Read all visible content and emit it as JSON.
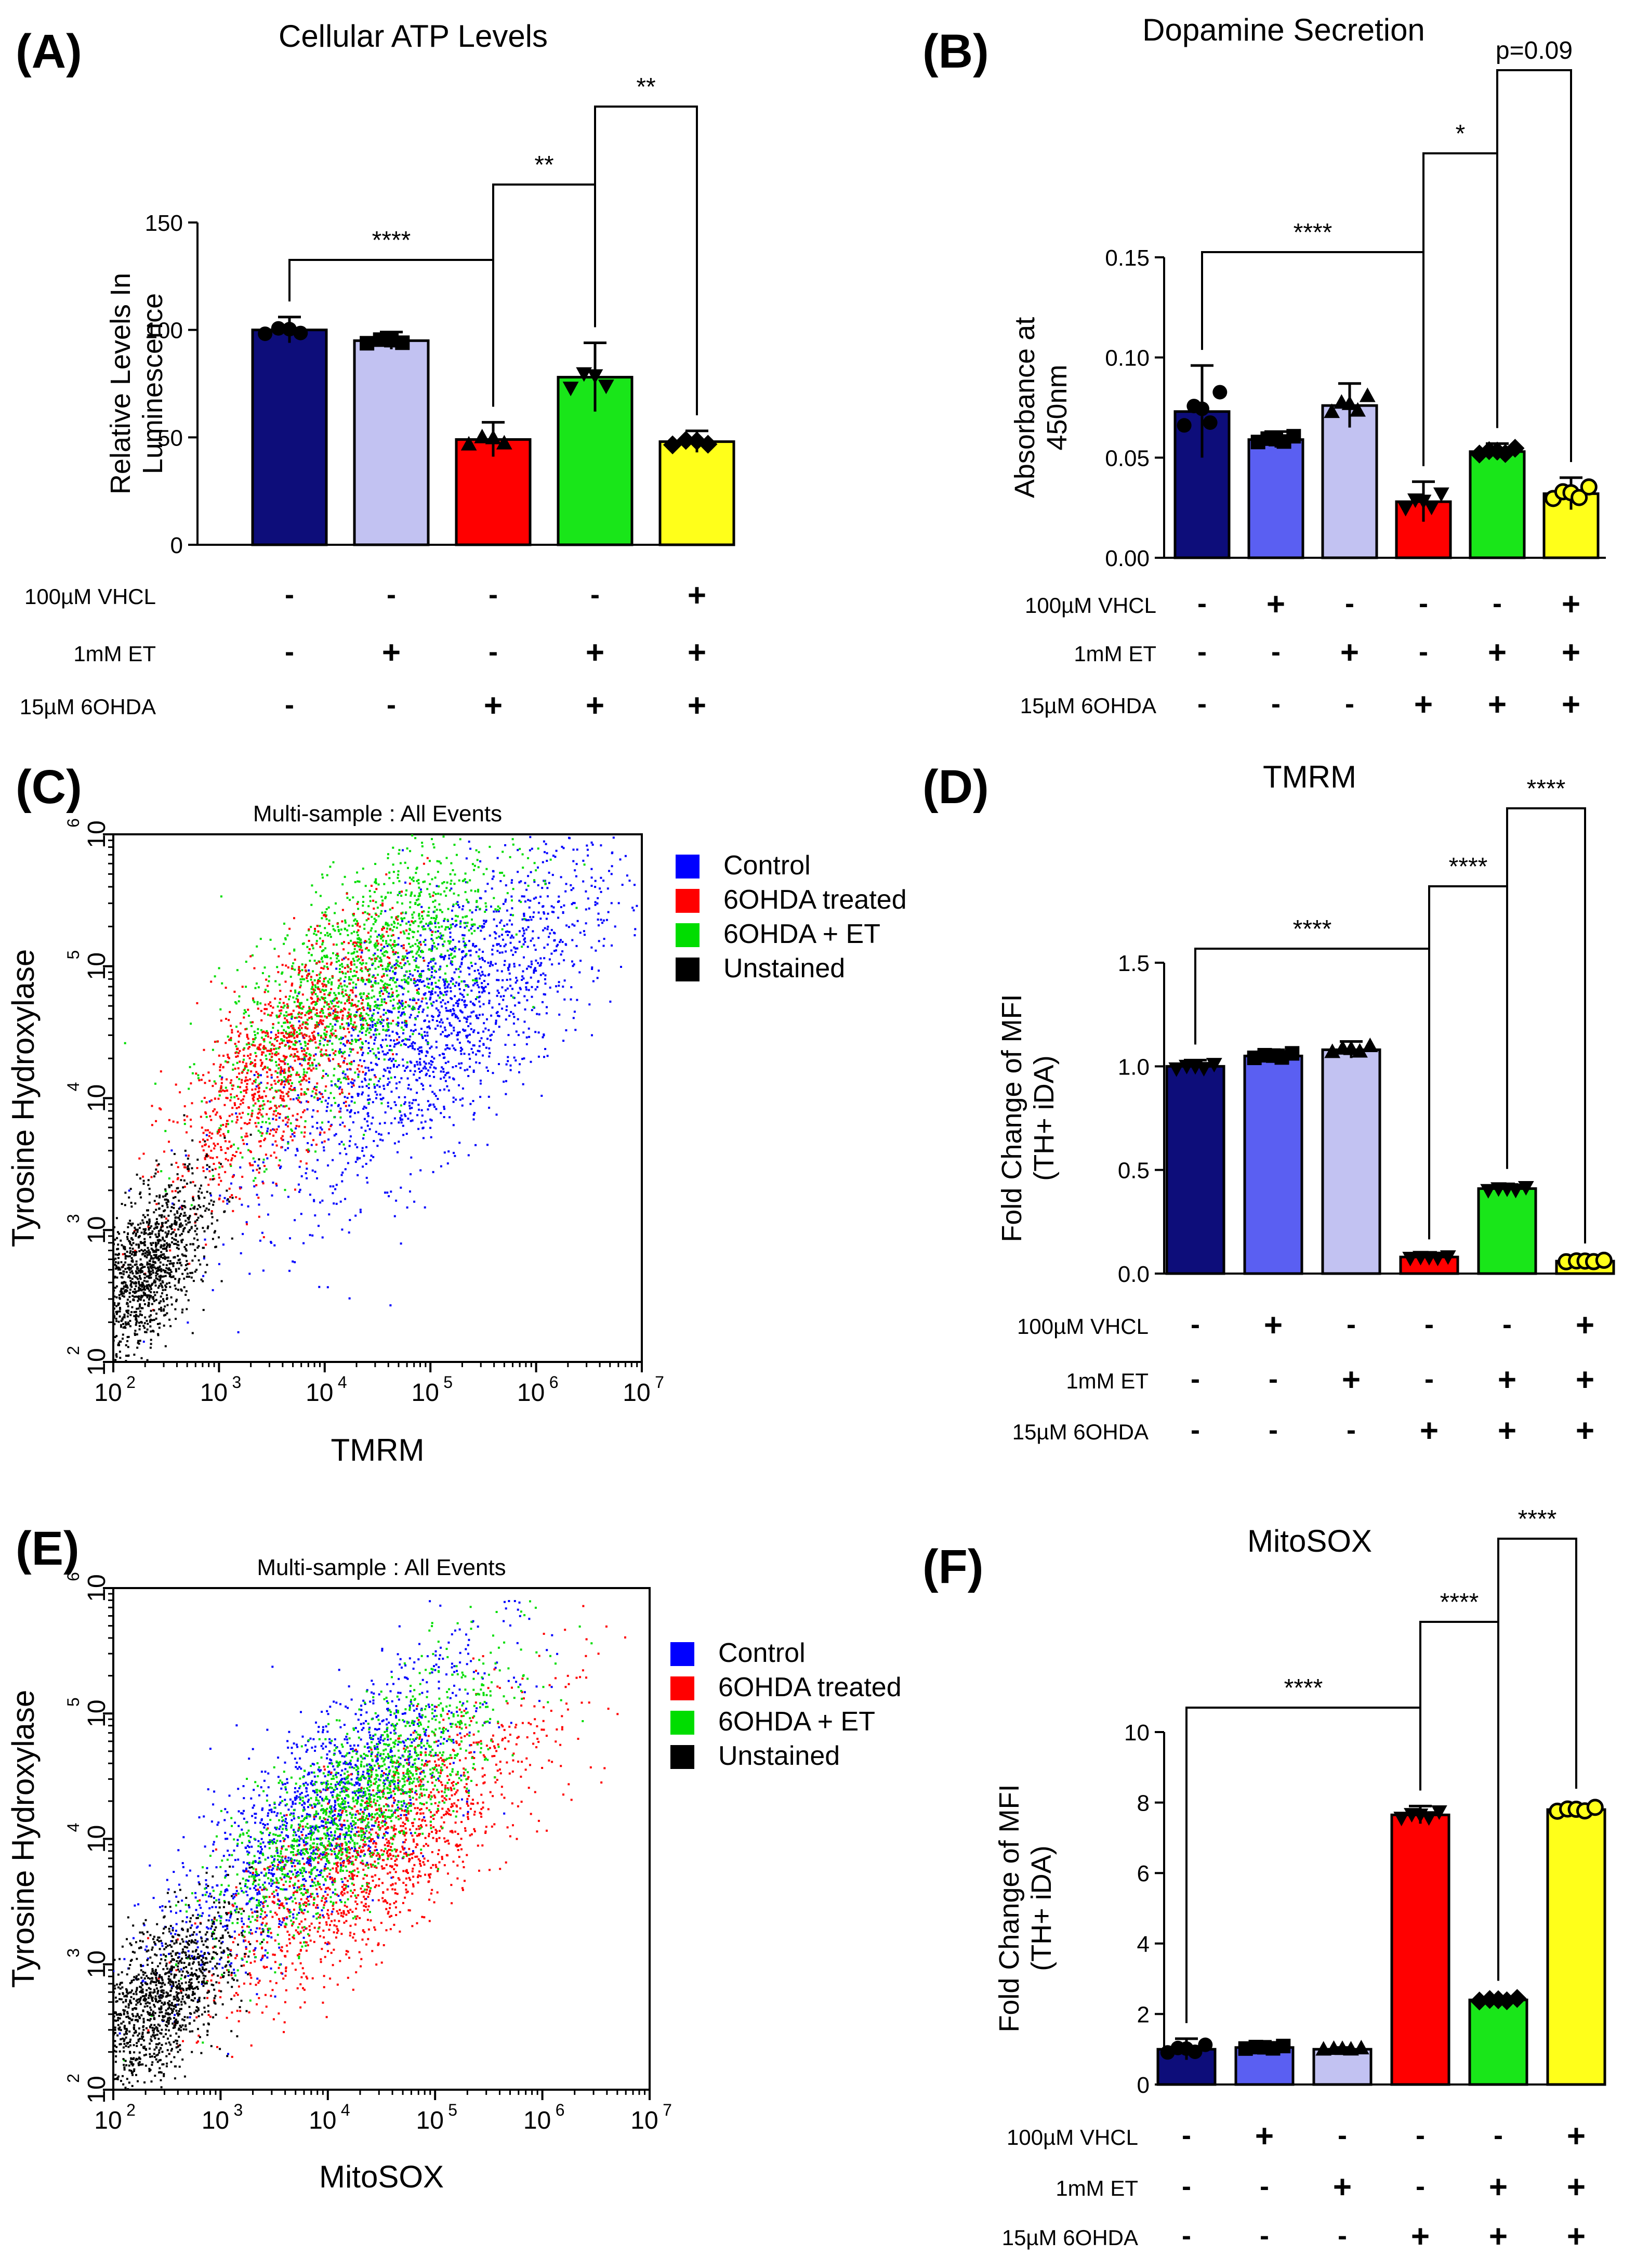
{
  "panels": {
    "A": {
      "letter": "(A)",
      "title": "Cellular ATP Levels"
    },
    "B": {
      "letter": "(B)",
      "title": "Dopamine Secretion"
    },
    "C": {
      "letter": "(C)",
      "title": "Multi-sample : All Events"
    },
    "D": {
      "letter": "(D)",
      "title": "TMRM"
    },
    "E": {
      "letter": "(E)",
      "title": "Multi-sample : All Events"
    },
    "F": {
      "letter": "(F)",
      "title": "MitoSOX"
    }
  },
  "treatment_labels": {
    "vhcl": "100µM VHCL",
    "et": "1mM ET",
    "ohda": "15µM 6OHDA"
  },
  "colors": {
    "navy": "#0d0d7a",
    "lavender": "#c2c2f2",
    "red": "#ff0000",
    "green": "#19e619",
    "yellow": "#ffff1a",
    "blue": "#5a5ff2",
    "flow_blue": "#0000ff",
    "flow_red": "#ff0000",
    "flow_green": "#00dd00",
    "flow_black": "#000000"
  },
  "chart_data": [
    {
      "panel": "A",
      "type": "bar",
      "title": "Cellular ATP Levels",
      "ylabel": "Relative Levels In Luminescence",
      "ylim": [
        0,
        150
      ],
      "yticks": [
        "0",
        "50",
        "100",
        "150"
      ],
      "values": [
        100,
        95,
        49,
        78,
        48
      ],
      "errors": [
        6,
        4,
        8,
        16,
        5
      ],
      "colors": [
        "#0d0d7a",
        "#c2c2f2",
        "#ff0000",
        "#19e619",
        "#ffff1a"
      ],
      "markers": [
        "circle",
        "square",
        "triangle",
        "triangle-down",
        "diamond"
      ],
      "treatments": {
        "vhcl": [
          "-",
          "-",
          "-",
          "-",
          "+"
        ],
        "et": [
          "-",
          "+",
          "-",
          "+",
          "+"
        ],
        "ohda": [
          "-",
          "-",
          "+",
          "+",
          "+"
        ]
      },
      "significance": [
        {
          "from": 0,
          "to": 2,
          "label": "****"
        },
        {
          "from": 2,
          "to": 3,
          "label": "**"
        },
        {
          "from": 3,
          "to": 4,
          "label": "**"
        }
      ]
    },
    {
      "panel": "B",
      "type": "bar",
      "title": "Dopamine Secretion",
      "ylabel": "Absorbance at 450nm",
      "ylim": [
        0,
        0.15
      ],
      "yticks": [
        "0.00",
        "0.05",
        "0.10",
        "0.15"
      ],
      "values": [
        0.073,
        0.059,
        0.076,
        0.028,
        0.053,
        0.032
      ],
      "errors": [
        0.023,
        0.004,
        0.011,
        0.01,
        0.004,
        0.008
      ],
      "colors": [
        "#0d0d7a",
        "#5a5ff2",
        "#c2c2f2",
        "#ff0000",
        "#19e619",
        "#ffff1a"
      ],
      "markers": [
        "circle",
        "square",
        "triangle",
        "triangle-down",
        "diamond",
        "circle-open"
      ],
      "treatments": {
        "vhcl": [
          "-",
          "+",
          "-",
          "-",
          "-",
          "+"
        ],
        "et": [
          "-",
          "-",
          "+",
          "-",
          "+",
          "+"
        ],
        "ohda": [
          "-",
          "-",
          "-",
          "+",
          "+",
          "+"
        ]
      },
      "significance": [
        {
          "from": 0,
          "to": 3,
          "label": "****"
        },
        {
          "from": 3,
          "to": 4,
          "label": "*"
        },
        {
          "from": 4,
          "to": 5,
          "label": "p=0.09"
        }
      ]
    },
    {
      "panel": "C",
      "type": "scatter",
      "title": "Multi-sample : All Events",
      "xlabel": "TMRM",
      "ylabel": "Tyrosine Hydroxylase",
      "xscale": "log",
      "yscale": "log",
      "xlim": [
        100,
        10000000
      ],
      "ylim": [
        100,
        1000000
      ],
      "legend": [
        "Control",
        "6OHDA treated",
        "6OHDA + ET",
        "Unstained"
      ],
      "legend_position": "right"
    },
    {
      "panel": "D",
      "type": "bar",
      "title": "TMRM",
      "ylabel": "Fold Change of MFI (TH+ iDA)",
      "ylim": [
        0,
        1.5
      ],
      "yticks": [
        "0.0",
        "0.5",
        "1.0",
        "1.5"
      ],
      "values": [
        1.0,
        1.05,
        1.08,
        0.08,
        0.41,
        0.06
      ],
      "errors": [
        0.03,
        0.03,
        0.04,
        0.01,
        0.02,
        0.01
      ],
      "colors": [
        "#0d0d7a",
        "#5a5ff2",
        "#c2c2f2",
        "#ff0000",
        "#19e619",
        "#ffff1a"
      ],
      "markers": [
        "triangle-down",
        "square",
        "triangle",
        "triangle-down",
        "triangle-down",
        "circle-open"
      ],
      "treatments": {
        "vhcl": [
          "-",
          "+",
          "-",
          "-",
          "-",
          "+"
        ],
        "et": [
          "-",
          "-",
          "+",
          "-",
          "+",
          "+"
        ],
        "ohda": [
          "-",
          "-",
          "-",
          "+",
          "+",
          "+"
        ]
      },
      "significance": [
        {
          "from": 0,
          "to": 3,
          "label": "****"
        },
        {
          "from": 3,
          "to": 4,
          "label": "****"
        },
        {
          "from": 4,
          "to": 5,
          "label": "****"
        }
      ]
    },
    {
      "panel": "E",
      "type": "scatter",
      "title": "Multi-sample : All Events",
      "xlabel": "MitoSOX",
      "ylabel": "Tyrosine Hydroxylase",
      "xscale": "log",
      "yscale": "log",
      "xlim": [
        100,
        10000000
      ],
      "ylim": [
        100,
        1000000
      ],
      "legend": [
        "Control",
        "6OHDA treated",
        "6OHDA + ET",
        "Unstained"
      ],
      "legend_position": "right"
    },
    {
      "panel": "F",
      "type": "bar",
      "title": "MitoSOX",
      "ylabel": "Fold Change of MFI (TH+ iDA)",
      "ylim": [
        0,
        10
      ],
      "yticks": [
        "0",
        "2",
        "4",
        "6",
        "8",
        "10"
      ],
      "values": [
        1.0,
        1.05,
        1.0,
        7.65,
        2.4,
        7.8
      ],
      "errors": [
        0.3,
        0.1,
        0.05,
        0.25,
        0.1,
        0.15
      ],
      "colors": [
        "#0d0d7a",
        "#5a5ff2",
        "#c2c2f2",
        "#ff0000",
        "#19e619",
        "#ffff1a"
      ],
      "markers": [
        "circle",
        "square",
        "triangle",
        "triangle-down",
        "diamond",
        "circle-open"
      ],
      "treatments": {
        "vhcl": [
          "-",
          "+",
          "-",
          "-",
          "-",
          "+"
        ],
        "et": [
          "-",
          "-",
          "+",
          "-",
          "+",
          "+"
        ],
        "ohda": [
          "-",
          "-",
          "-",
          "+",
          "+",
          "+"
        ]
      },
      "significance": [
        {
          "from": 0,
          "to": 3,
          "label": "****"
        },
        {
          "from": 3,
          "to": 4,
          "label": "****"
        },
        {
          "from": 4,
          "to": 5,
          "label": "****"
        }
      ]
    }
  ]
}
